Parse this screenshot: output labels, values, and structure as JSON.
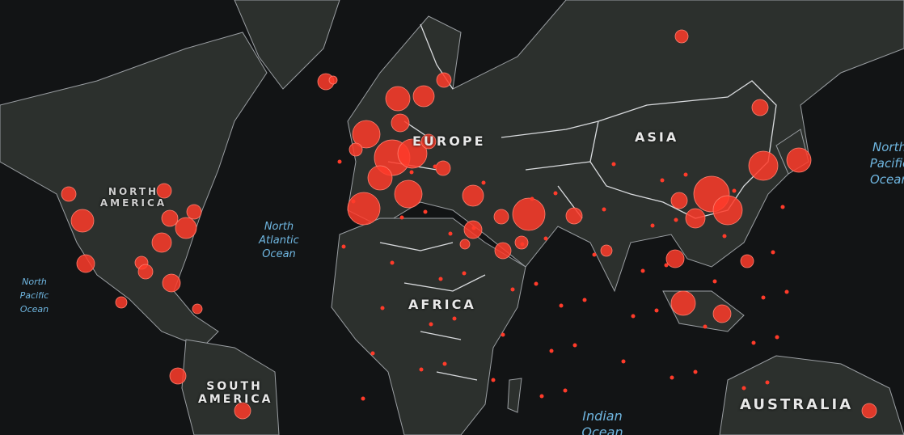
{
  "colors": {
    "background": "#121415",
    "land": "#2c302d",
    "borders": "#b9bcc0",
    "bubble": "#ff3b2a",
    "ocean_label": "#6fb6e0"
  },
  "continents": {
    "north_america": "NORTH AMERICA",
    "europe": "EUROPE",
    "asia": "ASIA",
    "africa": "AFRICA",
    "south_america": "SOUTH AMERICA",
    "australia": "AUSTRALIA"
  },
  "oceans": {
    "north_atlantic": "North Atlantic Ocean",
    "north_pacific_west": "North Pacific Ocean",
    "north_pacific_east": "North Pacific Ocean",
    "indian": "Indian Ocean"
  }
}
